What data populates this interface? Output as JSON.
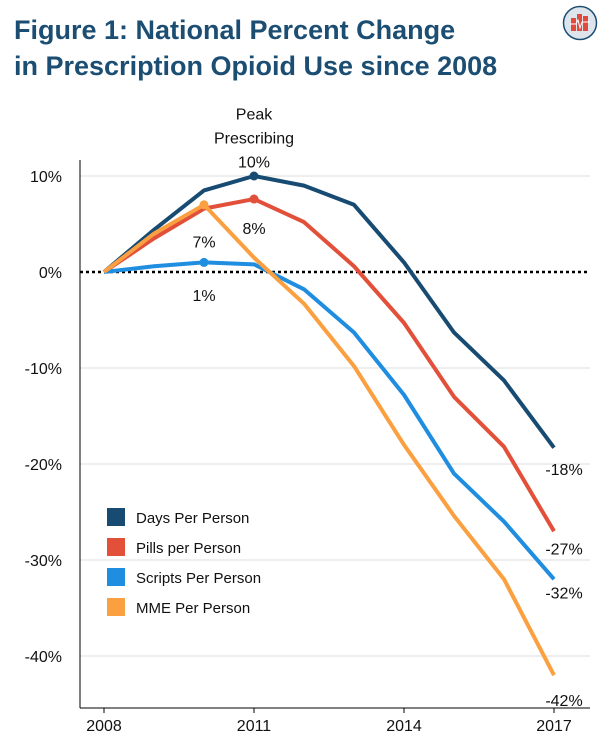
{
  "title_line1": "Figure 1: National Percent Change",
  "title_line2": "in Prescription Opioid Use since 2008",
  "chart_data": {
    "type": "line",
    "title": "Figure 1: National Percent Change in Prescription Opioid Use since 2008",
    "x": [
      2008,
      2009,
      2010,
      2011,
      2012,
      2013,
      2014,
      2015,
      2016,
      2017
    ],
    "x_ticks": [
      "2008",
      "2011",
      "2014",
      "2017"
    ],
    "y_ticks": [
      "10%",
      "0%",
      "-10%",
      "-20%",
      "-30%",
      "-40%"
    ],
    "y_tick_values": [
      10,
      0,
      -10,
      -20,
      -30,
      -40
    ],
    "ylim": [
      -45,
      12
    ],
    "grid": true,
    "legend_position": "bottom-left",
    "series": [
      {
        "name": "Days Per Person",
        "color": "#174b72",
        "values": [
          0,
          4.4,
          8.5,
          10,
          9,
          7,
          1,
          -6.3,
          -11.3,
          -18.3
        ]
      },
      {
        "name": "Pills per Person",
        "color": "#e2503a",
        "values": [
          0,
          3.5,
          6.6,
          7.6,
          5.2,
          0.6,
          -5.3,
          -13,
          -18.2,
          -27
        ]
      },
      {
        "name": "Scripts Per Person",
        "color": "#1f8de0",
        "values": [
          0,
          0.6,
          1,
          0.8,
          -1.8,
          -6.3,
          -12.8,
          -21,
          -26,
          -32
        ]
      },
      {
        "name": "MME Per Person",
        "color": "#fba040",
        "values": [
          0,
          4,
          7,
          1.5,
          -3.3,
          -9.8,
          -18,
          -25.4,
          -32,
          -42
        ]
      }
    ],
    "annotations": [
      {
        "text": "Peak",
        "x": 2011,
        "y": 16.5
      },
      {
        "text": "Prescribing",
        "x": 2011,
        "y": 14
      },
      {
        "text": "10%",
        "x": 2011,
        "y": 11.5
      },
      {
        "text": "8%",
        "x": 2011,
        "y": 4.6
      },
      {
        "text": "7%",
        "x": 2010,
        "y": 3.2
      },
      {
        "text": "1%",
        "x": 2010,
        "y": -2.4
      },
      {
        "text": "-18%",
        "x": 2017,
        "y": -20.5
      },
      {
        "text": "-27%",
        "x": 2017,
        "y": -28.8
      },
      {
        "text": "-32%",
        "x": 2017,
        "y": -33.4
      },
      {
        "text": "-42%",
        "x": 2017,
        "y": -44.6
      }
    ],
    "markers": [
      {
        "series": 0,
        "x": 2011
      },
      {
        "series": 1,
        "x": 2011
      },
      {
        "series": 3,
        "x": 2010
      },
      {
        "series": 2,
        "x": 2010
      }
    ]
  }
}
